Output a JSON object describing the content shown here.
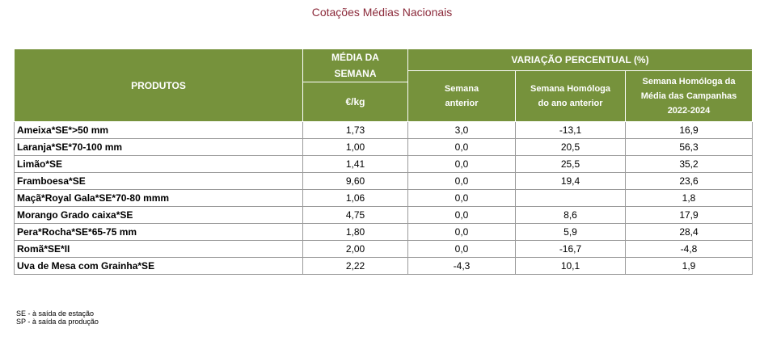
{
  "title": "Cotações Médias Nacionais",
  "header": {
    "produtos": "PRODUTOS",
    "media_line1": "MÉDIA DA",
    "media_line2": "SEMANA",
    "unit": "€/kg",
    "variacao": "VARIAÇÃO PERCENTUAL (%)",
    "sub1_line1": "Semana",
    "sub1_line2": "anterior",
    "sub2_line1": "Semana Homóloga",
    "sub2_line2": "do ano anterior",
    "sub3_line1": "Semana Homóloga da",
    "sub3_line2": "Média das Campanhas",
    "sub3_line3": "2022-2024"
  },
  "rows": [
    {
      "produto": "Ameixa*SE*>50 mm",
      "media": "1,73",
      "anterior": "3,0",
      "homologa": "-13,1",
      "campanhas": "16,9"
    },
    {
      "produto": "Laranja*SE*70-100 mm",
      "media": "1,00",
      "anterior": "0,0",
      "homologa": "20,5",
      "campanhas": "56,3"
    },
    {
      "produto": "Limão*SE",
      "media": "1,41",
      "anterior": "0,0",
      "homologa": "25,5",
      "campanhas": "35,2"
    },
    {
      "produto": "Framboesa*SE",
      "media": "9,60",
      "anterior": "0,0",
      "homologa": "19,4",
      "campanhas": "23,6"
    },
    {
      "produto": "Maçã*Royal Gala*SE*70-80 mmm",
      "media": "1,06",
      "anterior": "0,0",
      "homologa": "",
      "campanhas": "1,8"
    },
    {
      "produto": "Morango Grado caixa*SE",
      "media": "4,75",
      "anterior": "0,0",
      "homologa": "8,6",
      "campanhas": "17,9"
    },
    {
      "produto": "Pera*Rocha*SE*65-75 mm",
      "media": "1,80",
      "anterior": "0,0",
      "homologa": "5,9",
      "campanhas": "28,4"
    },
    {
      "produto": "Romã*SE*II",
      "media": "2,00",
      "anterior": "0,0",
      "homologa": "-16,7",
      "campanhas": "-4,8"
    },
    {
      "produto": "Uva de Mesa com Grainha*SE",
      "media": "2,22",
      "anterior": "-4,3",
      "homologa": "10,1",
      "campanhas": "1,9"
    }
  ],
  "footnotes": {
    "se": "SE - à saída de estação",
    "sp": "SP - à saída da produção"
  }
}
